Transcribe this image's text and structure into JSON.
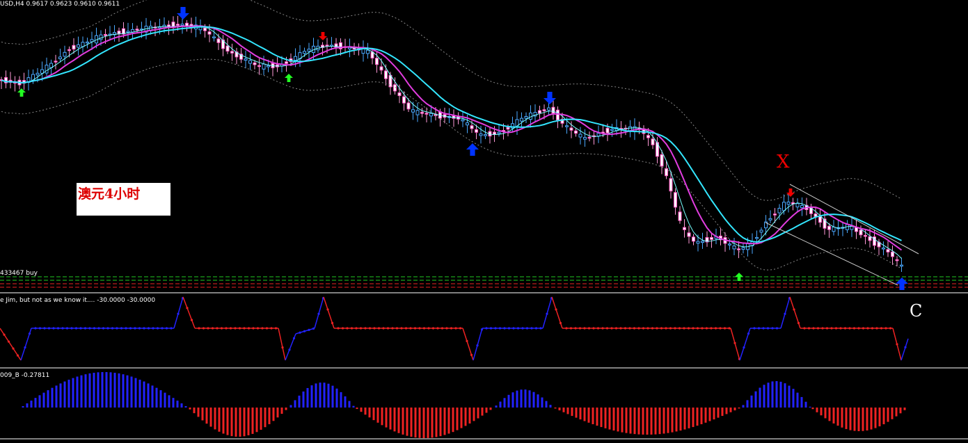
{
  "header": {
    "symbol": "USD,H4",
    "ohlc": [
      "0.9617",
      "0.9623",
      "0.9610",
      "0.9611"
    ]
  },
  "order_label": "433467 buy",
  "note": "澳元4小时",
  "indicator1": {
    "name": "e Jim, but not as we know it....",
    "values": [
      "-30.0000",
      "-30.0000"
    ]
  },
  "indicator2": {
    "name": "009_B",
    "value": "-0.27811"
  },
  "annotations": [
    "X",
    "C"
  ]
}
